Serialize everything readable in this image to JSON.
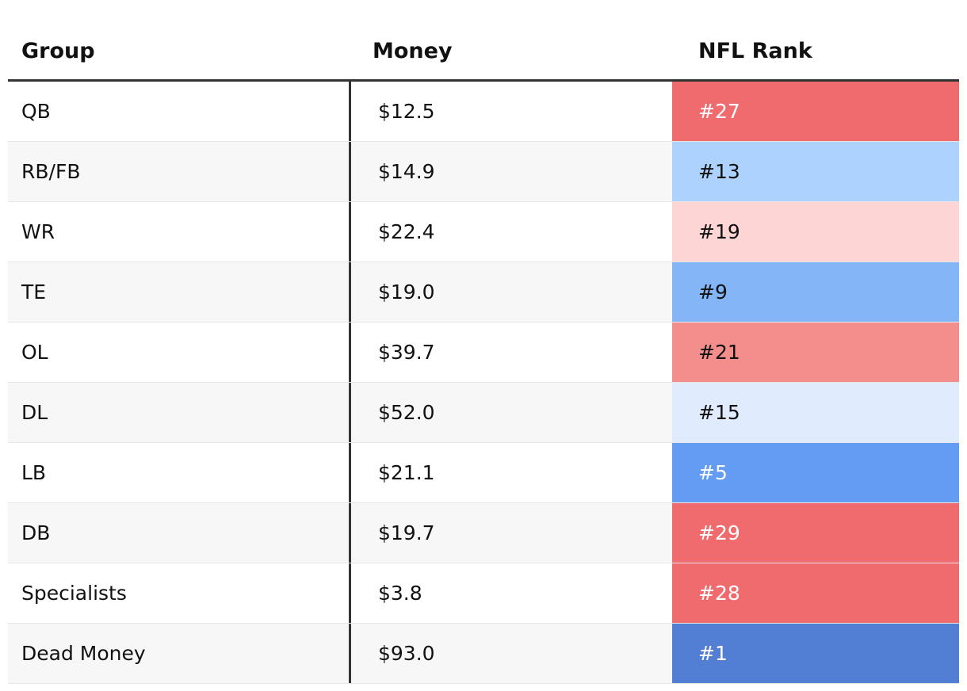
{
  "table": {
    "header": [
      "Group",
      "Money",
      "NFL Rank"
    ],
    "rows": [
      [
        "QB",
        "$12.5",
        "#27"
      ],
      [
        "RB/FB",
        "$14.9",
        "#13"
      ],
      [
        "WR",
        "$22.4",
        "#19"
      ],
      [
        "TE",
        "$19.0",
        "#9"
      ],
      [
        "OL",
        "$39.7",
        "#21"
      ],
      [
        "DL",
        "$52.0",
        "#15"
      ],
      [
        "LB",
        "$21.1",
        "#5"
      ],
      [
        "DB",
        "$19.7",
        "#29"
      ],
      [
        "Specialists",
        "$3.8",
        "#28"
      ],
      [
        "Dead Money",
        "$93.0",
        "#1"
      ]
    ],
    "rank_colors": [
      "#f06b6d",
      "#add2fd",
      "#fed5d5",
      "#84b5f7",
      "#f48e8d",
      "#e0ecfd",
      "#649cf4",
      "#f06b6d",
      "#f06b6d",
      "#527fd4"
    ]
  }
}
